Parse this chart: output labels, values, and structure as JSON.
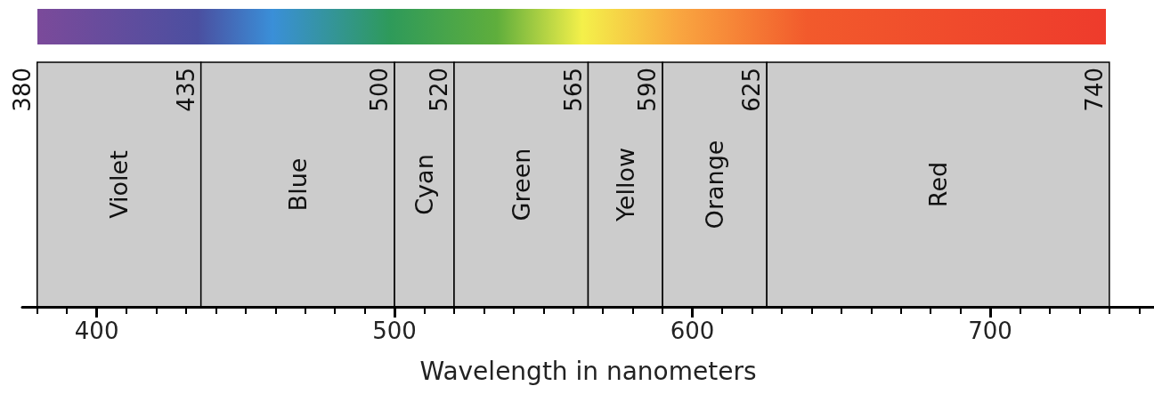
{
  "chart_data": {
    "type": "bar",
    "orientation": "horizontal",
    "categories": [
      null
    ],
    "xlabel": "Wavelength in nanometers",
    "xlim": [
      375,
      755
    ],
    "xticks": [
      400,
      500,
      600,
      700
    ],
    "series": [
      {
        "name": "Violet",
        "color": "#cccccc",
        "base": [
          380
        ],
        "values": [
          55
        ]
      },
      {
        "name": "Blue",
        "color": "#cccccc",
        "base": [
          435
        ],
        "values": [
          65
        ]
      },
      {
        "name": "Cyan",
        "color": "#cccccc",
        "base": [
          500
        ],
        "values": [
          20
        ]
      },
      {
        "name": "Green",
        "color": "#cccccc",
        "base": [
          520
        ],
        "values": [
          45
        ]
      },
      {
        "name": "Yellow",
        "color": "#cccccc",
        "base": [
          565
        ],
        "values": [
          25
        ]
      },
      {
        "name": "Orange",
        "color": "#cccccc",
        "base": [
          590
        ],
        "values": [
          35
        ]
      },
      {
        "name": "Red",
        "color": "#cccccc",
        "base": [
          625
        ],
        "values": [
          115
        ]
      }
    ],
    "annotations": [
      {
        "text": "380",
        "x": 380
      },
      {
        "text": "435",
        "x": 435
      },
      {
        "text": "500",
        "x": 500
      },
      {
        "text": "520",
        "x": 520
      },
      {
        "text": "565",
        "x": 565
      },
      {
        "text": "590",
        "x": 590
      },
      {
        "text": "625",
        "x": 625
      },
      {
        "text": "740",
        "x": 740
      }
    ]
  }
}
